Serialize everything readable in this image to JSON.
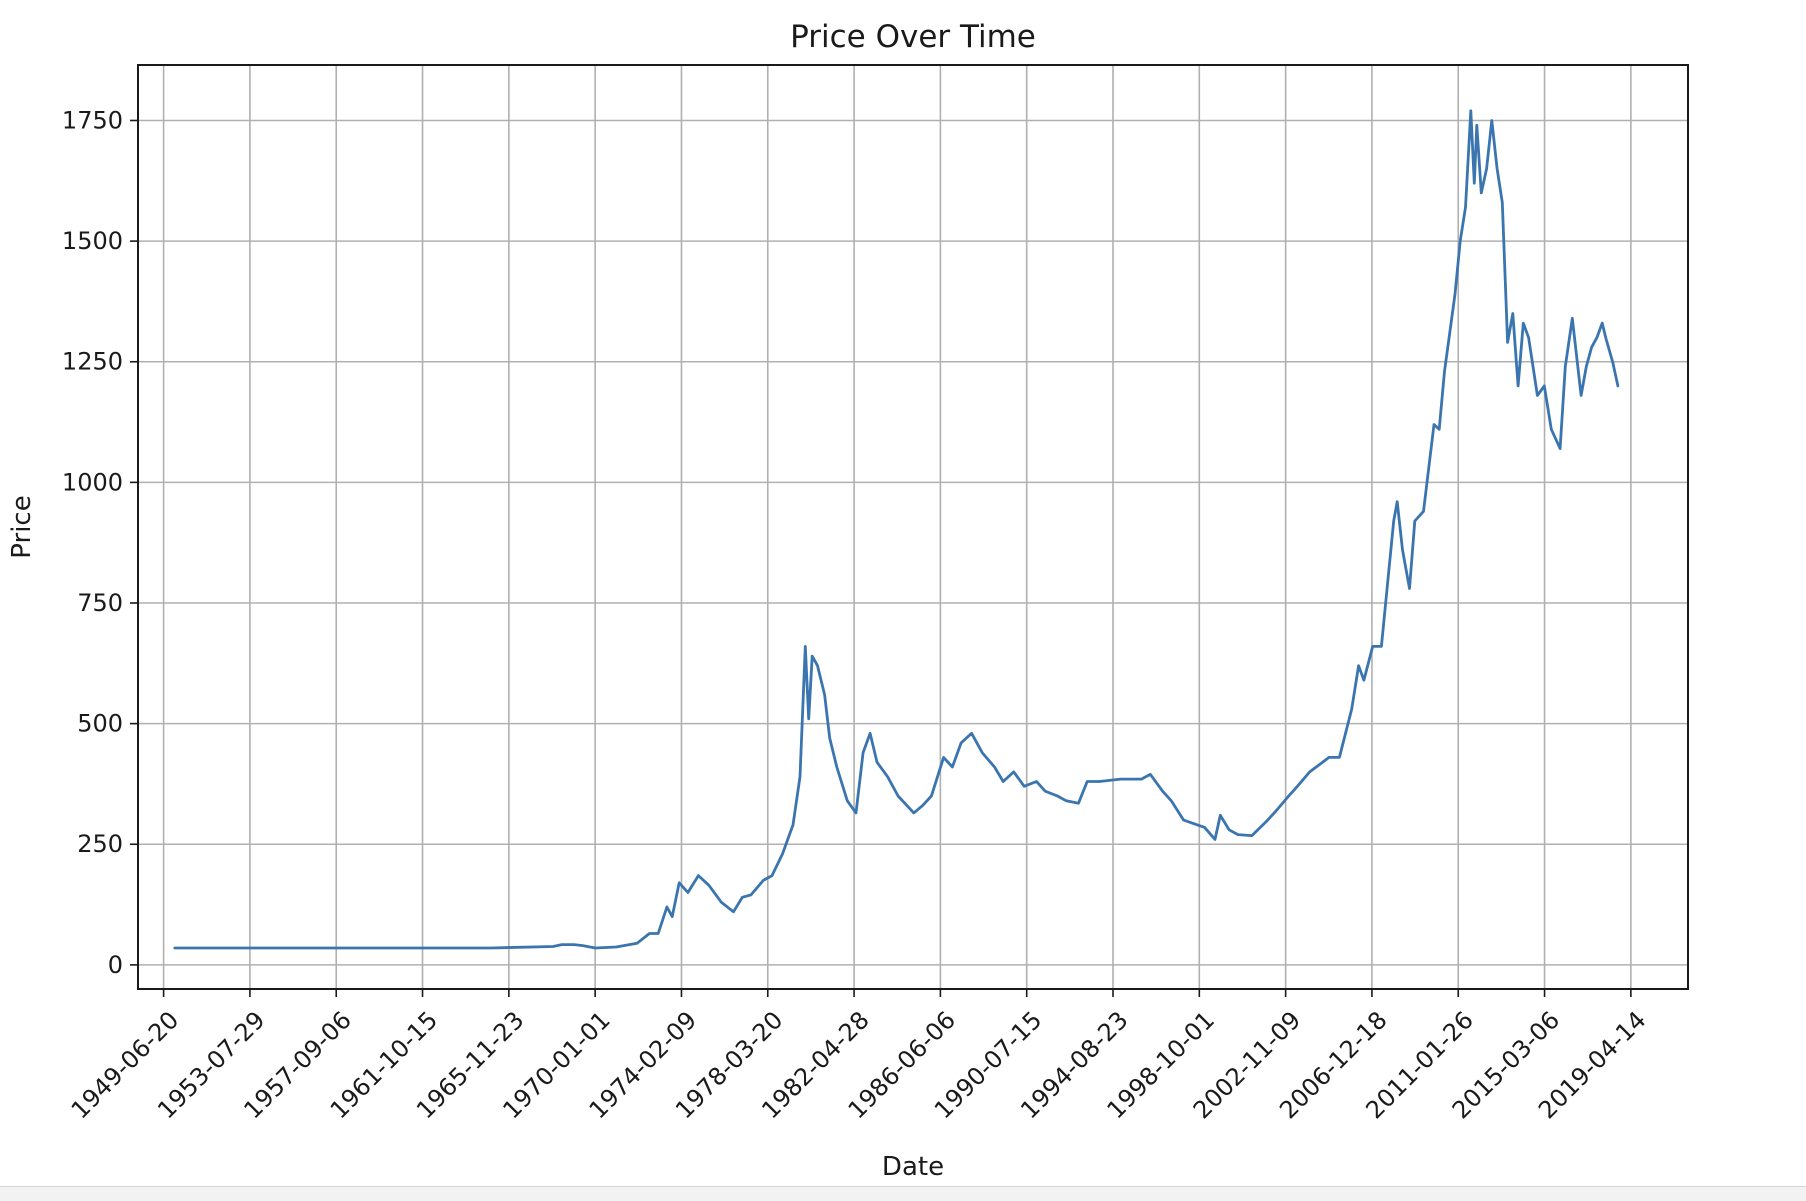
{
  "chart_data": {
    "type": "line",
    "title": "Price Over Time",
    "xlabel": "Date",
    "ylabel": "Price",
    "grid": true,
    "legend": "none",
    "x_axis_type": "date",
    "xlim": [
      "1948-04-01",
      "2022-01-01"
    ],
    "ylim": [
      -50,
      1865
    ],
    "x_ticks": [
      "1949-06-20",
      "1953-07-29",
      "1957-09-06",
      "1961-10-15",
      "1965-11-23",
      "1970-01-01",
      "1974-02-09",
      "1978-03-20",
      "1982-04-28",
      "1986-06-06",
      "1990-07-15",
      "1994-08-23",
      "1998-10-01",
      "2002-11-09",
      "2006-12-18",
      "2011-01-26",
      "2015-03-06",
      "2019-04-14"
    ],
    "y_ticks": [
      0,
      250,
      500,
      750,
      1000,
      1250,
      1500,
      1750
    ],
    "series": [
      {
        "color": "#3b75af",
        "x": [
          "1950-01-01",
          "1955-01-01",
          "1960-01-01",
          "1965-01-01",
          "1968-01-01",
          "1968-06-01",
          "1969-01-01",
          "1969-06-01",
          "1970-01-01",
          "1971-01-01",
          "1972-01-01",
          "1972-08-01",
          "1973-01-01",
          "1973-06-01",
          "1973-09-01",
          "1974-01-01",
          "1974-06-01",
          "1974-12-01",
          "1975-06-01",
          "1976-01-01",
          "1976-08-01",
          "1977-01-01",
          "1977-06-01",
          "1978-01-01",
          "1978-06-01",
          "1978-12-01",
          "1979-06-01",
          "1979-10-01",
          "1980-01-01",
          "1980-03-01",
          "1980-05-01",
          "1980-08-01",
          "1980-12-01",
          "1981-03-01",
          "1981-07-01",
          "1982-01-01",
          "1982-06-01",
          "1982-10-01",
          "1983-02-01",
          "1983-06-01",
          "1983-12-01",
          "1984-06-01",
          "1985-03-01",
          "1985-08-01",
          "1986-01-01",
          "1986-08-01",
          "1987-01-01",
          "1987-06-01",
          "1987-12-01",
          "1988-06-01",
          "1989-01-01",
          "1989-06-01",
          "1989-12-01",
          "1990-06-01",
          "1991-01-01",
          "1991-06-01",
          "1992-01-01",
          "1992-06-01",
          "1993-01-01",
          "1993-06-01",
          "1994-01-01",
          "1995-01-01",
          "1996-01-01",
          "1996-06-01",
          "1997-01-01",
          "1997-06-01",
          "1998-01-01",
          "1999-01-01",
          "1999-07-01",
          "1999-10-01",
          "2000-03-01",
          "2000-08-01",
          "2001-04-01",
          "2002-01-01",
          "2002-06-01",
          "2003-01-01",
          "2003-06-01",
          "2004-01-01",
          "2004-12-01",
          "2005-06-01",
          "2006-01-01",
          "2006-05-01",
          "2006-08-01",
          "2007-01-01",
          "2007-06-01",
          "2008-01-01",
          "2008-03-01",
          "2008-06-01",
          "2008-10-01",
          "2009-01-01",
          "2009-06-01",
          "2009-12-01",
          "2010-03-01",
          "2010-06-01",
          "2010-12-01",
          "2011-03-01",
          "2011-06-01",
          "2011-09-01",
          "2011-11-01",
          "2011-12-15",
          "2012-03-01",
          "2012-06-01",
          "2012-09-01",
          "2012-12-01",
          "2013-03-01",
          "2013-06-01",
          "2013-09-01",
          "2013-12-01",
          "2014-03-01",
          "2014-06-01",
          "2014-11-01",
          "2015-03-01",
          "2015-07-01",
          "2015-12-01",
          "2016-03-01",
          "2016-07-01",
          "2016-12-01",
          "2017-03-01",
          "2017-06-01",
          "2017-09-01",
          "2017-12-01",
          "2018-02-01",
          "2018-06-01",
          "2018-09-01"
        ],
        "values": [
          35,
          35,
          35,
          35,
          38,
          42,
          42,
          40,
          35,
          37,
          45,
          65,
          65,
          120,
          100,
          170,
          150,
          185,
          165,
          130,
          110,
          140,
          145,
          175,
          185,
          230,
          290,
          390,
          660,
          510,
          640,
          620,
          560,
          470,
          410,
          340,
          315,
          440,
          480,
          420,
          390,
          350,
          315,
          330,
          350,
          430,
          410,
          460,
          480,
          440,
          410,
          380,
          400,
          370,
          380,
          360,
          350,
          340,
          335,
          380,
          380,
          385,
          385,
          395,
          360,
          340,
          300,
          285,
          260,
          310,
          280,
          270,
          268,
          300,
          320,
          350,
          370,
          400,
          430,
          430,
          530,
          620,
          590,
          660,
          660,
          920,
          960,
          860,
          780,
          920,
          940,
          1120,
          1110,
          1230,
          1390,
          1500,
          1570,
          1770,
          1620,
          1740,
          1600,
          1650,
          1750,
          1650,
          1580,
          1290,
          1350,
          1200,
          1330,
          1300,
          1180,
          1200,
          1110,
          1070,
          1240,
          1340,
          1180,
          1240,
          1280,
          1300,
          1330,
          1300,
          1250,
          1200
        ]
      }
    ]
  }
}
